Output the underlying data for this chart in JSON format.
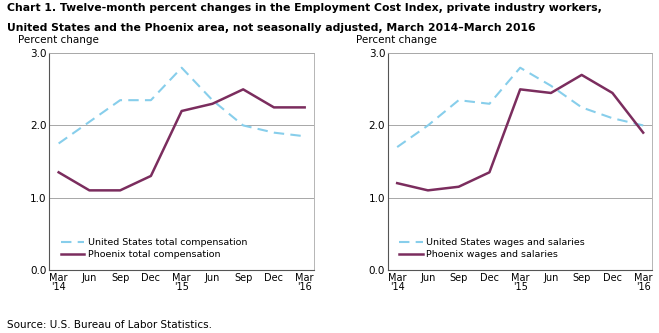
{
  "title_line1": "Chart 1. Twelve-month percent changes in the Employment Cost Index, private industry workers,",
  "title_line2": "United States and the Phoenix area, not seasonally adjusted, March 2014–March 2016",
  "ylabel": "Percent change",
  "source": "Source: U.S. Bureau of Labor Statistics.",
  "x_labels": [
    "Mar\n'14",
    "Jun",
    "Sep",
    "Dec",
    "Mar\n'15",
    "Jun",
    "Sep",
    "Dec",
    "Mar\n'16"
  ],
  "ylim": [
    0.0,
    3.0
  ],
  "yticks": [
    0.0,
    1.0,
    2.0,
    3.0
  ],
  "hlines": [
    1.0,
    2.0,
    3.0
  ],
  "left": {
    "us_label": "United States total compensation",
    "phoenix_label": "Phoenix total compensation",
    "us_values": [
      1.75,
      2.05,
      2.35,
      2.35,
      2.8,
      2.35,
      2.0,
      1.9,
      1.85
    ],
    "phoenix_values": [
      1.35,
      1.1,
      1.1,
      1.3,
      2.2,
      2.3,
      2.5,
      2.25,
      2.25
    ]
  },
  "right": {
    "us_label": "United States wages and salaries",
    "phoenix_label": "Phoenix wages and salaries",
    "us_values": [
      1.7,
      2.0,
      2.35,
      2.3,
      2.8,
      2.55,
      2.25,
      2.1,
      2.0
    ],
    "phoenix_values": [
      1.2,
      1.1,
      1.15,
      1.35,
      2.5,
      2.45,
      2.7,
      2.45,
      1.9
    ]
  },
  "us_color": "#87CEEB",
  "phoenix_color": "#7B2D5E",
  "us_linewidth": 1.5,
  "phoenix_linewidth": 1.8
}
